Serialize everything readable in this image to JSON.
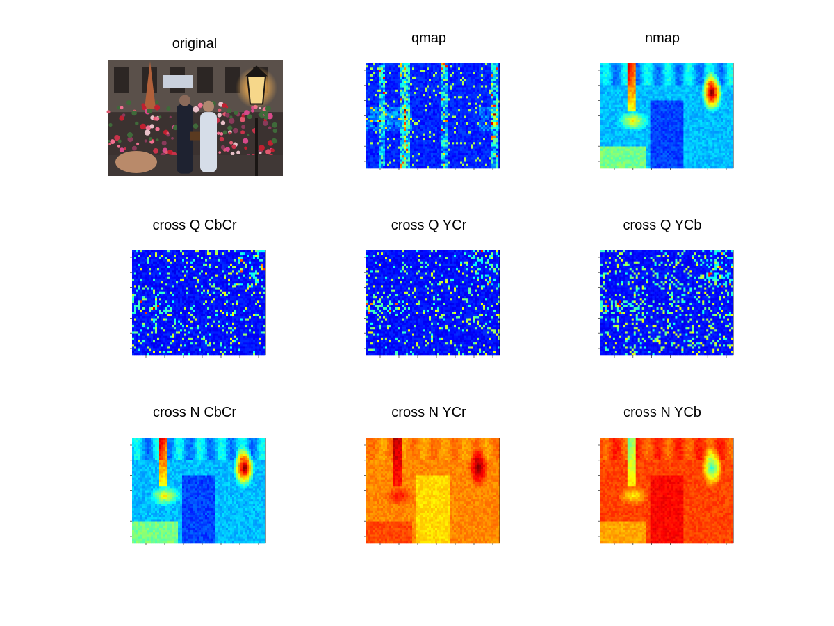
{
  "figure": {
    "background": "#ffffff",
    "layout": "3x3 subplot grid"
  },
  "chart_data": [
    {
      "type": "image",
      "title": "original",
      "content": "photo-street-flower-market",
      "axes_visible": false
    },
    {
      "type": "heatmap",
      "title": "qmap",
      "colormap": "jet",
      "pattern": "sparse-edges",
      "axes_visible": true,
      "grid": false
    },
    {
      "type": "heatmap",
      "title": "nmap",
      "colormap": "jet",
      "pattern": "scene-low",
      "axes_visible": true,
      "grid": false
    },
    {
      "type": "heatmap",
      "title": "cross Q CbCr",
      "colormap": "jet",
      "pattern": "sparse-noise",
      "axes_visible": true,
      "grid": false
    },
    {
      "type": "heatmap",
      "title": "cross Q YCr",
      "colormap": "jet",
      "pattern": "sparse-noise",
      "axes_visible": true,
      "grid": false
    },
    {
      "type": "heatmap",
      "title": "cross Q YCb",
      "colormap": "jet",
      "pattern": "sparse-noise-dense",
      "axes_visible": true,
      "grid": false
    },
    {
      "type": "heatmap",
      "title": "cross N CbCr",
      "colormap": "jet",
      "pattern": "scene-low",
      "axes_visible": true,
      "grid": false
    },
    {
      "type": "heatmap",
      "title": "cross N YCr",
      "colormap": "jet",
      "pattern": "scene-warm",
      "axes_visible": true,
      "grid": false
    },
    {
      "type": "heatmap",
      "title": "cross N YCb",
      "colormap": "jet",
      "pattern": "scene-hot",
      "axes_visible": true,
      "grid": false
    }
  ]
}
